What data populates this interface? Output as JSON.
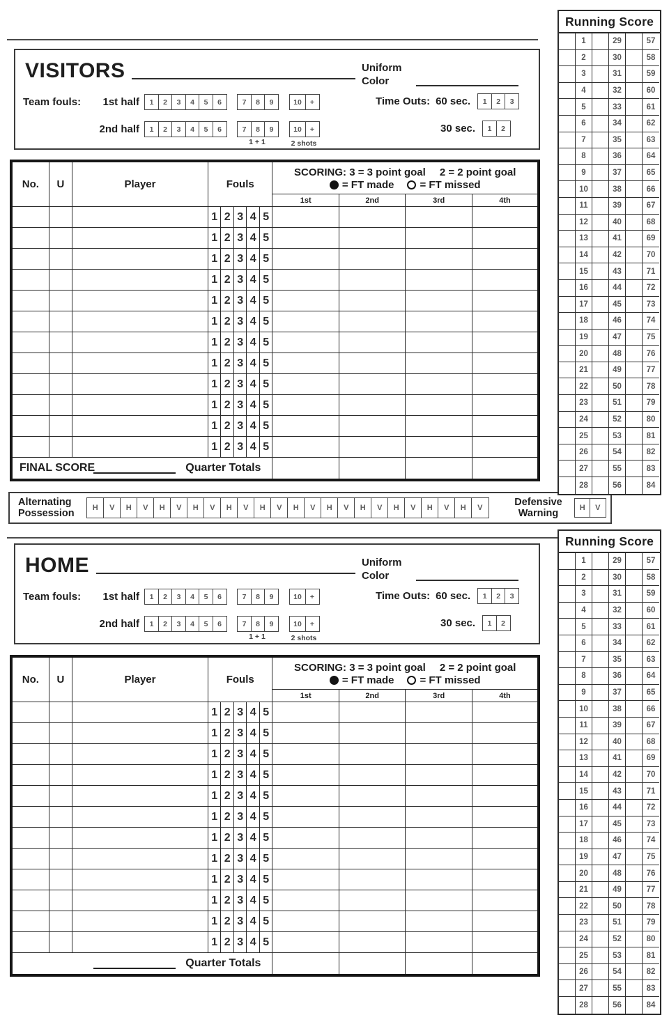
{
  "running_score": {
    "title": "Running Score",
    "rows": [
      [
        1,
        29,
        57
      ],
      [
        2,
        30,
        58
      ],
      [
        3,
        31,
        59
      ],
      [
        4,
        32,
        60
      ],
      [
        5,
        33,
        61
      ],
      [
        6,
        34,
        62
      ],
      [
        7,
        35,
        63
      ],
      [
        8,
        36,
        64
      ],
      [
        9,
        37,
        65
      ],
      [
        10,
        38,
        66
      ],
      [
        11,
        39,
        67
      ],
      [
        12,
        40,
        68
      ],
      [
        13,
        41,
        69
      ],
      [
        14,
        42,
        70
      ],
      [
        15,
        43,
        71
      ],
      [
        16,
        44,
        72
      ],
      [
        17,
        45,
        73
      ],
      [
        18,
        46,
        74
      ],
      [
        19,
        47,
        75
      ],
      [
        20,
        48,
        76
      ],
      [
        21,
        49,
        77
      ],
      [
        22,
        50,
        78
      ],
      [
        23,
        51,
        79
      ],
      [
        24,
        52,
        80
      ],
      [
        25,
        53,
        81
      ],
      [
        26,
        54,
        82
      ],
      [
        27,
        55,
        83
      ],
      [
        28,
        56,
        84
      ]
    ]
  },
  "teams": {
    "visitors": {
      "name": "VISITORS",
      "final_score_label": "FINAL SCORE"
    },
    "home": {
      "name": "HOME",
      "final_score_label": ""
    }
  },
  "team_header": {
    "uniform_label": "Uniform",
    "color_label": "Color",
    "team_fouls_label": "Team fouls:",
    "first_half_label": "1st half",
    "second_half_label": "2nd half",
    "foul_boxes_a": [
      "1",
      "2",
      "3",
      "4",
      "5",
      "6"
    ],
    "foul_boxes_b": [
      "7",
      "8",
      "9"
    ],
    "foul_boxes_c": [
      "10",
      "+"
    ],
    "one_and_one_note": "1 + 1",
    "two_shots_note": "2 shots",
    "time_outs_label": "Time Outs:",
    "sixty_label": "60 sec.",
    "thirty_label": "30 sec.",
    "timeout_60_boxes": [
      "1",
      "2",
      "3"
    ],
    "timeout_30_boxes": [
      "1",
      "2"
    ]
  },
  "player_table": {
    "no_header": "No.",
    "u_header": "U",
    "player_header": "Player",
    "fouls_header": "Fouls",
    "scoring_title_a": "SCORING: 3 = 3 point goal",
    "scoring_title_b": "2 = 2 point goal",
    "ft_made_label": "= FT made",
    "ft_missed_label": "= FT missed",
    "quarters": [
      "1st",
      "2nd",
      "3rd",
      "4th"
    ],
    "foul_cells": [
      "1",
      "2",
      "3",
      "4",
      "5"
    ],
    "row_count": 12,
    "quarter_totals_label": "Quarter Totals"
  },
  "possession": {
    "label_line1": "Alternating",
    "label_line2": "Possession",
    "boxes": [
      "H",
      "V",
      "H",
      "V",
      "H",
      "V",
      "H",
      "V",
      "H",
      "V",
      "H",
      "V",
      "H",
      "V",
      "H",
      "V",
      "H",
      "V",
      "H",
      "V",
      "H",
      "V",
      "H",
      "V"
    ],
    "defensive_line1": "Defensive",
    "defensive_line2": "Warning",
    "defensive_boxes": [
      "H",
      "V"
    ]
  }
}
